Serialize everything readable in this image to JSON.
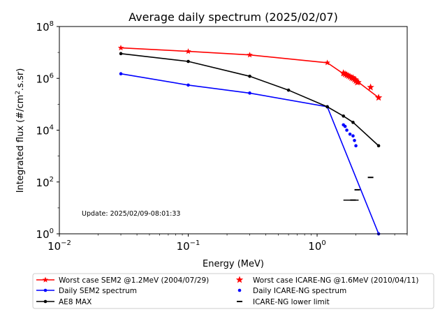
{
  "chart_data": {
    "type": "line",
    "title": "Average daily spectrum (2025/02/07)",
    "xlabel": "Energy (MeV)",
    "ylabel": "Integrated flux (#/cm².s.sr)",
    "ylabel_base": "Integrated flux (#/cm",
    "ylabel_sup": "2",
    "ylabel_tail": ".s.sr)",
    "x_scale": "log",
    "y_scale": "log",
    "xlim": [
      0.01,
      5
    ],
    "ylim": [
      1,
      100000000
    ],
    "x_ticks": [
      {
        "value": 0.01,
        "base": "10",
        "exp": "−2"
      },
      {
        "value": 0.1,
        "base": "10",
        "exp": "−1"
      },
      {
        "value": 1,
        "base": "10",
        "exp": "0"
      }
    ],
    "y_ticks": [
      {
        "value": 1,
        "base": "10",
        "exp": "0"
      },
      {
        "value": 100,
        "base": "10",
        "exp": "2"
      },
      {
        "value": 10000,
        "base": "10",
        "exp": "4"
      },
      {
        "value": 1000000,
        "base": "10",
        "exp": "6"
      },
      {
        "value": 100000000,
        "base": "10",
        "exp": "8"
      }
    ],
    "grid": false,
    "annotation": "Update: 2025/02/09-08:01:33",
    "legend_position": "below plot",
    "series": [
      {
        "name": "Worst case SEM2 @1.2MeV (2004/07/29)",
        "color": "#ff0000",
        "marker": "star",
        "style": "line",
        "x": [
          0.03,
          0.1,
          0.3,
          1.2,
          1.6,
          1.7,
          1.8,
          1.9,
          2.0,
          2.1,
          3.0
        ],
        "y": [
          15000000,
          11000000,
          8000000,
          4000000,
          1500000,
          1300000,
          1200000,
          1100000,
          900000,
          700000,
          180000
        ]
      },
      {
        "name": "Daily SEM2 spectrum",
        "color": "#0000ff",
        "marker": "dot",
        "style": "line",
        "x": [
          0.03,
          0.1,
          0.3,
          1.2,
          3.0
        ],
        "y": [
          1500000,
          550000,
          270000,
          80000,
          1
        ]
      },
      {
        "name": "AE8 MAX",
        "color": "#000000",
        "marker": "dot",
        "style": "line",
        "x": [
          0.03,
          0.1,
          0.3,
          0.6,
          1.2,
          1.6,
          1.9,
          3.0
        ],
        "y": [
          9000000,
          4500000,
          1200000,
          350000,
          80000,
          35000,
          20000,
          2500
        ]
      },
      {
        "name": "Worst case ICARE-NG @1.6MeV (2010/04/11)",
        "color": "#ff0000",
        "marker": "star",
        "style": "scatter",
        "x": [
          1.6,
          1.65,
          1.7,
          1.75,
          1.8,
          1.85,
          1.9,
          1.95,
          2.0,
          2.05,
          2.6,
          3.0
        ],
        "y": [
          1600000,
          1450000,
          1350000,
          1250000,
          1150000,
          1050000,
          1000000,
          900000,
          800000,
          700000,
          450000,
          180000
        ]
      },
      {
        "name": "Daily ICARE-NG spectrum",
        "color": "#0000ff",
        "marker": "dot",
        "style": "scatter",
        "x": [
          1.6,
          1.65,
          1.7,
          1.8,
          1.9,
          1.95,
          2.0
        ],
        "y": [
          16000,
          14000,
          10000,
          7000,
          6000,
          4000,
          2500
        ]
      },
      {
        "name": "ICARE-NG lower limit",
        "color": "#000000",
        "marker": "hline",
        "style": "scatter",
        "x": [
          1.9,
          2.05,
          2.6
        ],
        "y": [
          20,
          50,
          150
        ]
      }
    ]
  }
}
